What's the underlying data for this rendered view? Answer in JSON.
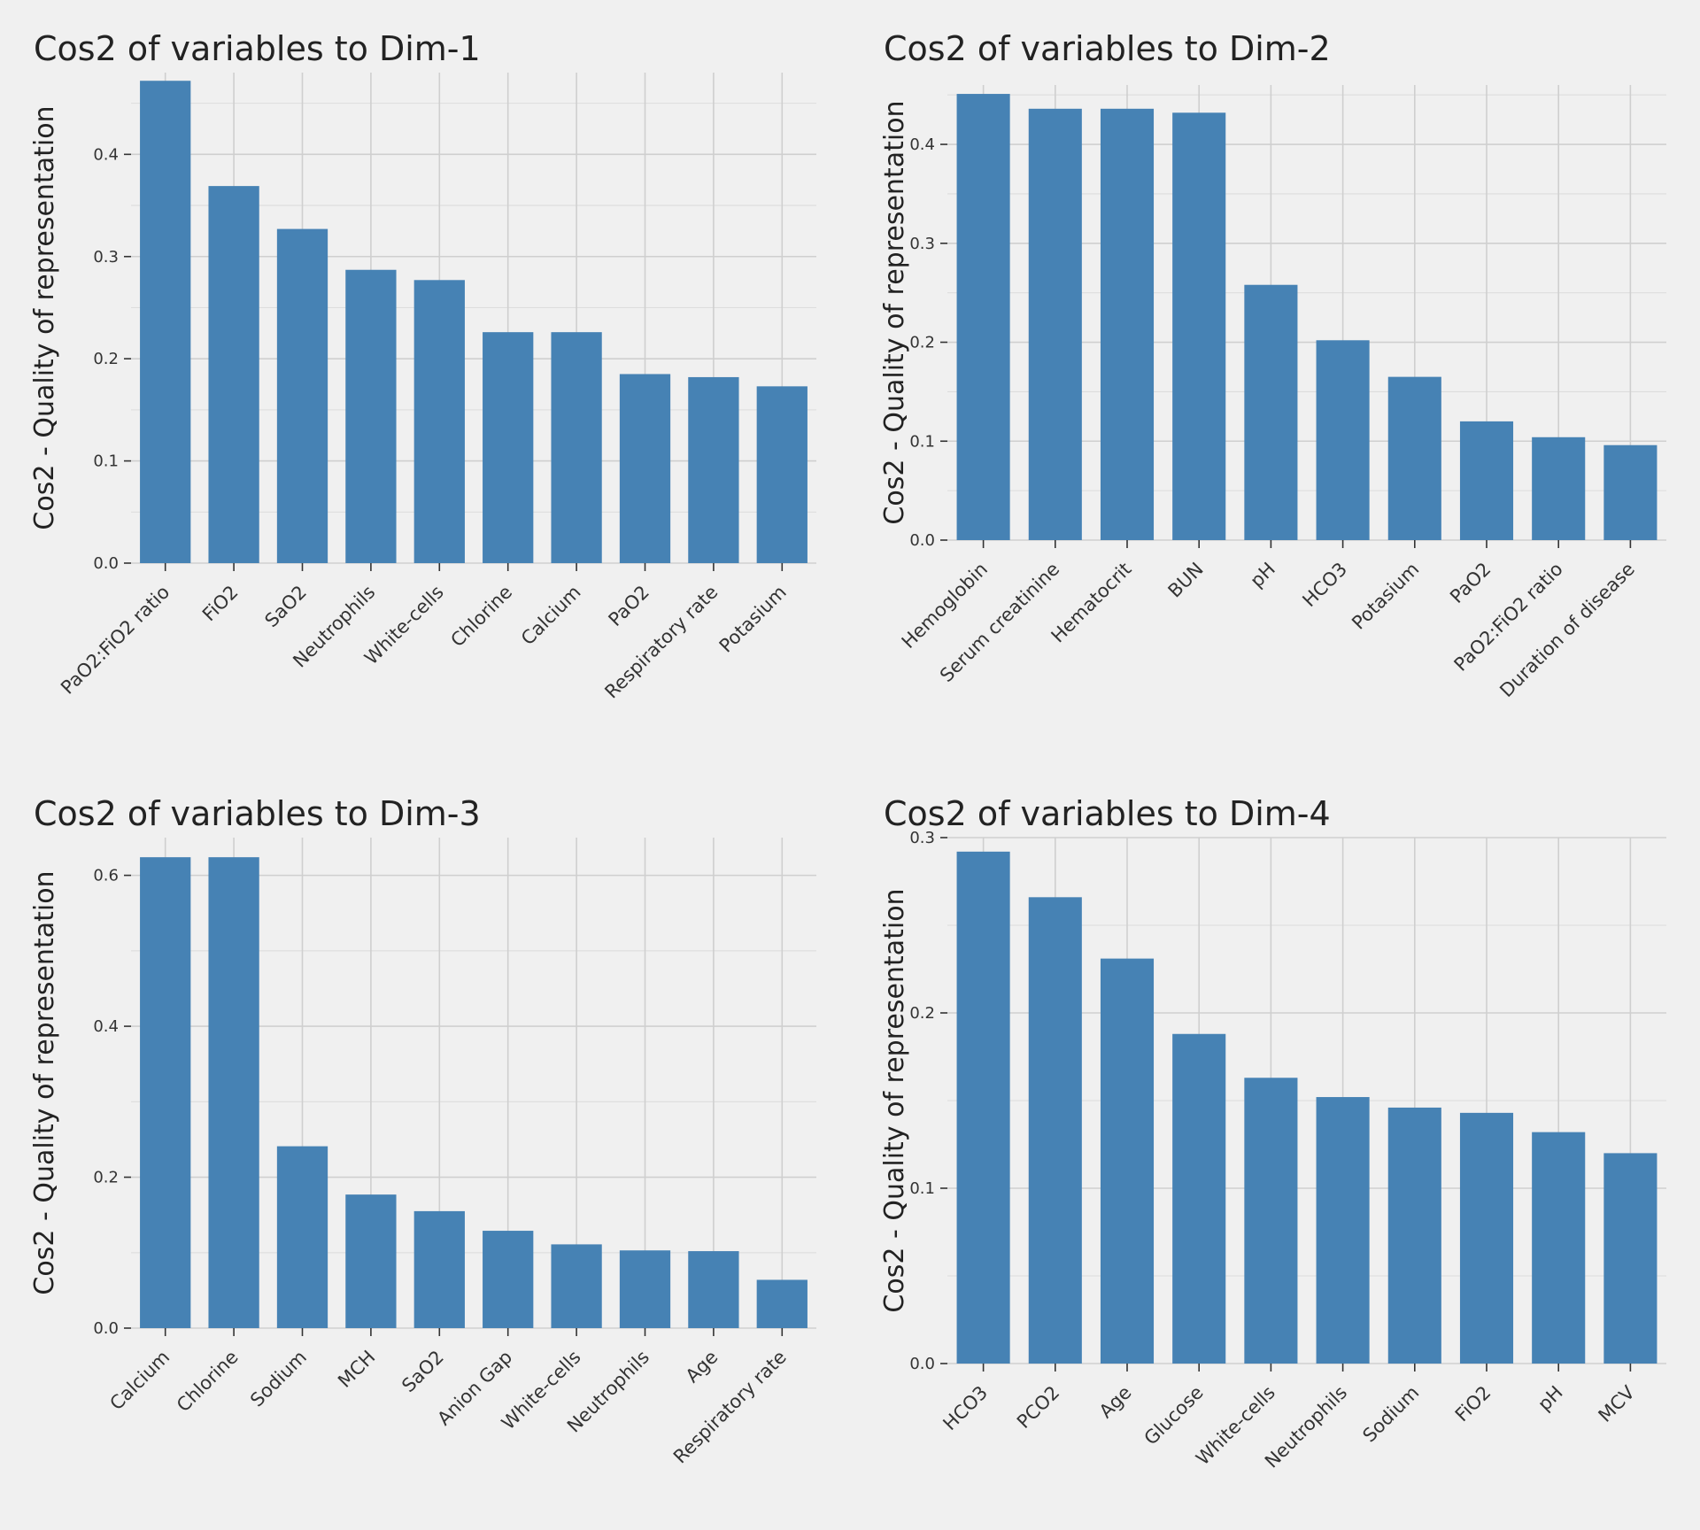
{
  "colors": {
    "bar": "#4682b4",
    "background": "#f0f0f0",
    "grid": "#cfcfcf"
  },
  "chart_data": [
    {
      "type": "bar",
      "title": "Cos2 of variables to Dim-1",
      "xlabel": "",
      "ylabel": "Cos2 - Quality of representation",
      "ylim": [
        0,
        0.48
      ],
      "yticks": [
        0.0,
        0.1,
        0.2,
        0.3,
        0.4
      ],
      "ytick_labels": [
        "0.0",
        "0.1",
        "0.2",
        "0.3",
        "0.4"
      ],
      "grid": true,
      "categories": [
        "PaO2:FiO2 ratio",
        "FiO2",
        "SaO2",
        "Neutrophils",
        "White-cells",
        "Chlorine",
        "Calcium",
        "PaO2",
        "Respiratory rate",
        "Potasium"
      ],
      "values": [
        0.472,
        0.369,
        0.327,
        0.287,
        0.277,
        0.226,
        0.226,
        0.185,
        0.182,
        0.173
      ]
    },
    {
      "type": "bar",
      "title": "Cos2 of variables to Dim-2",
      "xlabel": "",
      "ylabel": "Cos2 - Quality of representation",
      "ylim": [
        0,
        0.46
      ],
      "yticks": [
        0.0,
        0.1,
        0.2,
        0.3,
        0.4
      ],
      "ytick_labels": [
        "0.0",
        "0.1",
        "0.2",
        "0.3",
        "0.4"
      ],
      "grid": true,
      "categories": [
        "Hemoglobin",
        "Serum creatinine",
        "Hematocrit",
        "BUN",
        "pH",
        "HCO3",
        "Potasium",
        "PaO2",
        "PaO2:FiO2 ratio",
        "Duration of disease"
      ],
      "values": [
        0.451,
        0.436,
        0.436,
        0.432,
        0.258,
        0.202,
        0.165,
        0.12,
        0.104,
        0.096
      ]
    },
    {
      "type": "bar",
      "title": "Cos2 of variables to Dim-3",
      "xlabel": "",
      "ylabel": "Cos2 - Quality of representation",
      "ylim": [
        0,
        0.65
      ],
      "yticks": [
        0.0,
        0.2,
        0.4,
        0.6
      ],
      "ytick_labels": [
        "0.0",
        "0.2",
        "0.4",
        "0.6"
      ],
      "grid": true,
      "categories": [
        "Calcium",
        "Chlorine",
        "Sodium",
        "MCH",
        "SaO2",
        "Anion Gap",
        "White-cells",
        "Neutrophils",
        "Age",
        "Respiratory rate"
      ],
      "values": [
        0.624,
        0.624,
        0.241,
        0.177,
        0.155,
        0.129,
        0.111,
        0.103,
        0.102,
        0.064
      ]
    },
    {
      "type": "bar",
      "title": "Cos2 of variables to Dim-4",
      "xlabel": "",
      "ylabel": "Cos2 - Quality of representation",
      "ylim": [
        0,
        0.3
      ],
      "yticks": [
        0.0,
        0.1,
        0.2,
        0.3
      ],
      "ytick_labels": [
        "0.0",
        "0.1",
        "0.2",
        "0.3"
      ],
      "grid": true,
      "categories": [
        "HCO3",
        "PCO2",
        "Age",
        "Glucose",
        "White-cells",
        "Neutrophils",
        "Sodium",
        "FiO2",
        "pH",
        "MCV"
      ],
      "values": [
        0.292,
        0.266,
        0.231,
        0.188,
        0.163,
        0.152,
        0.146,
        0.143,
        0.132,
        0.12
      ]
    }
  ]
}
